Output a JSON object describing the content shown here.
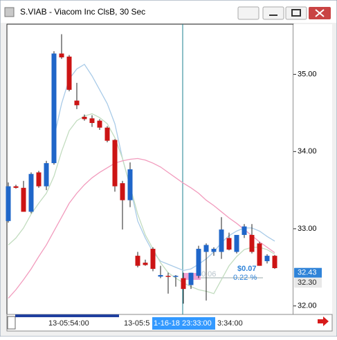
{
  "window": {
    "title": "S.VIAB - Viacom Inc ClsB, 30 Sec"
  },
  "chart_data": {
    "type": "candlestick",
    "up_color": "#1f66c9",
    "down_color": "#cc1414",
    "open": [
      33.1,
      33.55,
      33.53,
      33.22,
      33.73,
      33.55,
      33.85,
      35.27,
      35.23,
      34.66,
      34.45,
      34.43,
      34.4,
      34.31,
      34.15,
      33.59,
      33.37,
      32.65,
      32.56,
      32.74,
      32.38,
      32.39,
      32.39,
      32.36,
      32.27,
      32.39,
      32.7,
      32.7,
      32.7,
      32.88,
      32.7,
      32.92,
      32.92,
      32.81,
      32.58,
      32.65
    ],
    "high": [
      33.6,
      33.57,
      33.62,
      33.73,
      33.75,
      33.88,
      35.3,
      35.52,
      35.25,
      34.89,
      34.48,
      34.47,
      34.42,
      34.33,
      34.16,
      33.62,
      33.86,
      32.7,
      32.6,
      32.76,
      32.52,
      32.43,
      32.4,
      32.43,
      32.43,
      32.78,
      32.81,
      32.76,
      33.15,
      32.95,
      32.92,
      33.06,
      33.06,
      32.83,
      32.67,
      32.66
    ],
    "low": [
      33.08,
      33.52,
      33.22,
      33.2,
      33.53,
      33.5,
      33.83,
      35.2,
      34.78,
      34.55,
      34.4,
      34.32,
      34.28,
      34.12,
      33.48,
      32.99,
      33.28,
      32.5,
      32.52,
      32.45,
      32.36,
      32.16,
      32.25,
      32.03,
      32.22,
      32.36,
      32.07,
      32.65,
      32.61,
      32.72,
      32.68,
      32.88,
      32.68,
      32.52,
      32.55,
      32.48
    ],
    "close": [
      33.55,
      33.53,
      33.22,
      33.71,
      33.55,
      33.85,
      35.27,
      35.22,
      34.8,
      34.6,
      34.42,
      34.37,
      34.31,
      34.14,
      33.55,
      33.37,
      33.77,
      32.52,
      32.53,
      32.48,
      32.4,
      32.38,
      32.39,
      32.22,
      32.43,
      32.74,
      32.79,
      32.74,
      32.99,
      32.73,
      32.92,
      33.03,
      32.7,
      32.52,
      32.65,
      32.49
    ],
    "lines": [
      {
        "color": "#a9cbe8",
        "values": [
          null,
          null,
          null,
          null,
          null,
          null,
          34.18,
          34.62,
          34.94,
          35.07,
          35.13,
          34.98,
          34.8,
          34.62,
          34.36,
          33.91,
          33.55,
          33.1,
          32.88,
          32.7,
          32.58,
          32.54,
          32.5,
          32.46,
          32.48,
          32.54,
          32.61,
          32.7,
          32.82,
          32.91,
          32.97,
          33.01,
          33.01,
          32.97,
          32.9,
          32.84
        ]
      },
      {
        "color": "#c2dcbf",
        "values": [
          32.79,
          32.88,
          33.01,
          33.19,
          33.33,
          33.46,
          33.68,
          34.0,
          34.27,
          34.4,
          34.46,
          34.49,
          34.44,
          34.36,
          34.18,
          33.91,
          33.55,
          33.19,
          32.92,
          32.74,
          32.56,
          32.43,
          32.36,
          32.3,
          32.25,
          32.21,
          32.19,
          32.16,
          32.34,
          32.52,
          32.64,
          32.73,
          32.76,
          32.76,
          32.73,
          32.67
        ]
      },
      {
        "color": "#f29bbd",
        "values": [
          32.1,
          32.21,
          32.34,
          32.48,
          32.64,
          32.79,
          32.97,
          33.15,
          33.33,
          33.46,
          33.57,
          33.66,
          33.73,
          33.79,
          33.85,
          33.88,
          33.9,
          33.91,
          33.89,
          33.85,
          33.8,
          33.73,
          33.66,
          33.59,
          33.53,
          33.46,
          33.37,
          33.3,
          33.22,
          33.14,
          33.07,
          32.99,
          32.91,
          32.83,
          32.76,
          32.69
        ]
      }
    ],
    "ylim": [
      31.89,
      35.65
    ],
    "yticks": [
      {
        "value": 32,
        "label": "32.00"
      },
      {
        "value": 33,
        "label": "33.00"
      },
      {
        "value": 34,
        "label": "34.00"
      },
      {
        "value": 35,
        "label": "35.00"
      }
    ],
    "price_tags": [
      {
        "value": 32.3,
        "label": "32.30"
      },
      {
        "value": 32.43,
        "label": "32.43"
      }
    ],
    "time_labels": [
      "13-05:54:00",
      "13-05:5",
      "1-16-18 23:33:00",
      "3:34:00"
    ],
    "annotations": [
      "$0.07",
      "0.22 %",
      "0.06"
    ]
  }
}
